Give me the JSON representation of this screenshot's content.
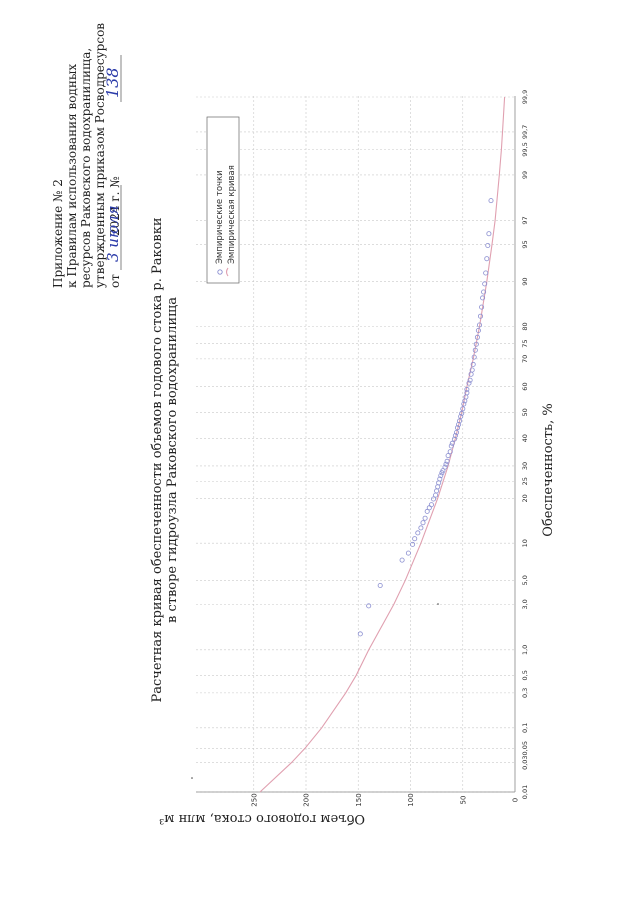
{
  "header": {
    "lines": [
      "Приложение № 2",
      "к Правилам использования водных",
      "ресурсов Раковского водохранилища,",
      "утвержденным приказом Росводресурсов",
      "от          2024 г. №"
    ],
    "date_handwritten": "3 июля",
    "number_handwritten": "138"
  },
  "chart_data": {
    "type": "scatter",
    "title": "Расчетная кривая обеспеченности объемов годового стока р. Раковки",
    "subtitle": "в створе гидроузла Раковского водохранилища",
    "xlabel": "Обеспеченность, %",
    "ylabel": "Объем годового стока, млн м³",
    "x_scale": "probability",
    "xlim": [
      0.01,
      99.9
    ],
    "ylim": [
      0,
      300
    ],
    "x_ticks": [
      0.01,
      0.03,
      0.05,
      0.1,
      0.3,
      0.5,
      1.0,
      3.0,
      5.0,
      10,
      20,
      25,
      30,
      40,
      50,
      60,
      70,
      75,
      80,
      90,
      95,
      97,
      99,
      99.5,
      99.7,
      99.9
    ],
    "x_tick_labels": [
      "0,01",
      "0,03",
      "0,05",
      "0,1",
      "0,3",
      "0,5",
      "1,0",
      "3,0",
      "5,0",
      "10",
      "20",
      "25",
      "30",
      "40",
      "50",
      "60",
      "70",
      "75",
      "80",
      "90",
      "95",
      "97",
      "99",
      "99,5",
      "99,7",
      "99,9"
    ],
    "y_ticks": [
      0,
      50,
      100,
      150,
      200,
      250
    ],
    "y_tick_labels": [
      "0",
      "50",
      "100",
      "150",
      "200",
      "250"
    ],
    "grid": true,
    "legend": {
      "position": "top-right",
      "entries": [
        {
          "label": "Эмпирические точки",
          "marker": "circle"
        },
        {
          "label": "Эмпирическая кривая",
          "marker": "line"
        }
      ]
    },
    "series": [
      {
        "name": "Эмпирические точки",
        "kind": "points",
        "color": "#8a8ed0",
        "x": [
          1.5,
          2.9,
          4.5,
          7.4,
          8.4,
          9.8,
          10.8,
          11.9,
          12.9,
          14.0,
          15.0,
          16.6,
          17.5,
          18.3,
          19.8,
          20.9,
          22.1,
          23.3,
          24.5,
          25.7,
          26.8,
          27.7,
          28.4,
          29.6,
          30.6,
          31.6,
          33.6,
          35.0,
          37.1,
          38.1,
          39.7,
          41.0,
          42.2,
          44.0,
          45.3,
          46.7,
          48.4,
          49.6,
          51.4,
          53.3,
          54.5,
          56.0,
          57.6,
          58.9,
          61.3,
          62.4,
          64.6,
          66.1,
          68.1,
          70.6,
          72.9,
          74.8,
          76.9,
          78.9,
          80.4,
          82.7,
          84.9,
          86.9,
          88.1,
          89.6,
          91.4,
          93.4,
          94.9,
          96.0,
          98.1
        ],
        "y": [
          148,
          140,
          129,
          108,
          102,
          98,
          96,
          93,
          90,
          88,
          86,
          84,
          82,
          80,
          78,
          76,
          75,
          74,
          73,
          72,
          71,
          70,
          69,
          67,
          66,
          65,
          64,
          62,
          61,
          60,
          58,
          57,
          56,
          55,
          54,
          53,
          52,
          51,
          50,
          49,
          48,
          47,
          46,
          46,
          44,
          43,
          42,
          41,
          40,
          39,
          38,
          37,
          36,
          35,
          34,
          33,
          32,
          31,
          30,
          29,
          28,
          27,
          26,
          25,
          23
        ]
      },
      {
        "name": "Эмпирическая кривая",
        "kind": "curve",
        "color": "#e0a0b0",
        "x": [
          0.01,
          0.03,
          0.05,
          0.1,
          0.3,
          0.5,
          1.0,
          3.0,
          5.0,
          10,
          20,
          30,
          40,
          50,
          60,
          70,
          80,
          90,
          95,
          97,
          99,
          99.5,
          99.7,
          99.9
        ],
        "y": [
          244,
          214,
          201,
          185,
          162,
          152,
          140,
          116,
          105,
          90,
          74,
          64,
          57,
          51,
          46,
          40,
          34,
          27,
          22,
          19,
          15,
          13,
          12,
          10
        ]
      }
    ]
  }
}
